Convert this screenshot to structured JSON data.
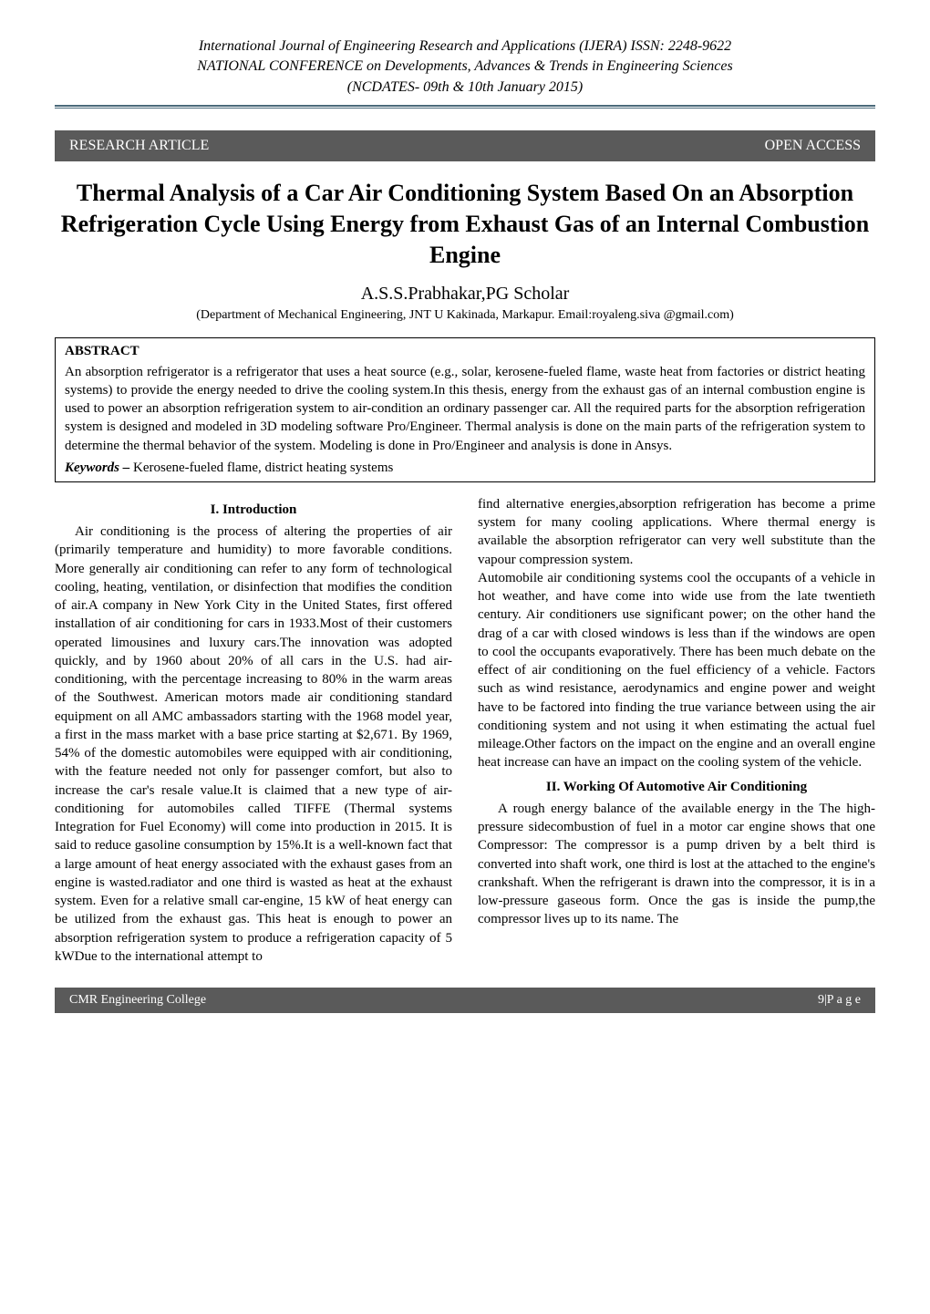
{
  "journal": {
    "line1": "International Journal of Engineering Research and Applications (IJERA) ISSN: 2248-9622",
    "line2": "NATIONAL CONFERENCE on Developments, Advances & Trends in Engineering Sciences",
    "line3": "(NCDATES- 09th & 10th January 2015)"
  },
  "banner": {
    "left": "RESEARCH ARTICLE",
    "right": "OPEN ACCESS"
  },
  "title": "Thermal Analysis of a Car Air Conditioning System Based On an        Absorption Refrigeration Cycle Using Energy from Exhaust Gas of an Internal Combustion Engine",
  "author": "A.S.S.Prabhakar,PG Scholar",
  "affiliation": "(Department of  Mechanical Engineering, JNT U Kakinada, Markapur. Email:royaleng.siva @gmail.com)",
  "abstract": {
    "heading": "ABSTRACT",
    "text": "An absorption refrigerator is a refrigerator that uses a heat source (e.g., solar, kerosene-fueled flame, waste heat from factories or district heating systems) to provide the energy needed to drive the cooling system.In this thesis, energy from the exhaust gas of an internal combustion engine is used to power an absorption refrigeration system to air-condition an ordinary passenger car. All the required parts for the absorption refrigeration system is designed and modeled in 3D modeling software Pro/Engineer. Thermal analysis is done on the main parts of the refrigeration system to determine the thermal behavior of the system. Modeling is done in Pro/Engineer and analysis is done in Ansys.",
    "keywords_label": "Keywords –",
    "keywords_text": " Kerosene-fueled flame, district heating systems"
  },
  "sections": {
    "s1_heading": "I.   Introduction",
    "s1_p1": "Air conditioning is the process of altering the properties of air (primarily temperature and humidity) to more favorable conditions. More generally   air conditioning can refer to any form of technological cooling,    heating, ventilation, or disinfection that modifies the condition of air.A company in New York City in the United States, first offered installation of air conditioning for cars in 1933.Most of their customers operated limousines and luxury cars.The innovation was adopted quickly, and by 1960 about 20% of all cars in the U.S. had air-conditioning, with the percentage  increasing to 80%  in the  warm areas  of  the Southwest. American   motors   made   air   conditioning standard equipment on all AMC ambassadors starting with the 1968 model year, a first in the mass market with a base price starting at $2,671. By 1969, 54% of the domestic automobiles were equipped with air conditioning, with the feature needed not only for passenger comfort, but also to increase the car's resale value.It is claimed that a new type of air-conditioning   for automobiles called TIFFE (Thermal systems Integration for Fuel Economy) will come into production in 2015. It is said to reduce gasoline consumption by 15%.It is a well-known fact that a large amount of heat energy associated with the exhaust gases from an engine is wasted.radiator and one third is wasted as heat at the exhaust system. Even for a relative small car-engine, 15 kW of heat  energy can be utilized from the exhaust gas. This heat is enough  to  power  an  absorption refrigeration  system  to produce a refrigeration capacity of 5 kWDue to the international attempt to",
    "s1_p2": "find alternative energies,absorption  refrigeration has become a prime system for many cooling applications. Where thermal energy is available the  absorption  refrigerator  can  very  well substitute than the vapour compression system.",
    "s1_p3": "Automobile air conditioning systems cool the occupants of a vehicle in hot weather, and have come into wide use from the late twentieth century. Air conditioners use significant power; on the other hand the drag of a car with closed windows is less than if the windows are open to cool the occupants evaporatively. There has been much debate on the effect of air conditioning on the fuel efficiency of a vehicle.  Factors  such  as  wind  resistance, aerodynamics and engine power and weight have to be factored into finding the true variance between using the air conditioning system and not using it when estimating the actual fuel mileage.Other factors on the impact on the engine and an overall engine heat increase can have an impact on the cooling system of the vehicle.",
    "s2_heading": "II.  Working Of Automotive Air Conditioning",
    "s2_p1": "A rough energy balance of the available energy in the The high-pressure sidecombustion of fuel in a motor car    engine shows that one Compressor: The compressor is a pump driven by a belt third is converted into shaft work, one third is lost at the attached to the engine's crankshaft. When the refrigerant is drawn into the compressor, it is in a low-pressure gaseous form. Once the gas is inside the pump,the compressor lives up to its name. The"
  },
  "footer": {
    "left": "CMR Engineering College",
    "right": "9|P a g e"
  },
  "style": {
    "page_bg": "#ffffff",
    "text_color": "#000000",
    "banner_bg": "#5a5a5a",
    "banner_fg": "#ffffff",
    "rule_color": "#4a6a7a",
    "body_fontsize": 15,
    "title_fontsize": 26,
    "author_fontsize": 20,
    "affiliation_fontsize": 14
  }
}
